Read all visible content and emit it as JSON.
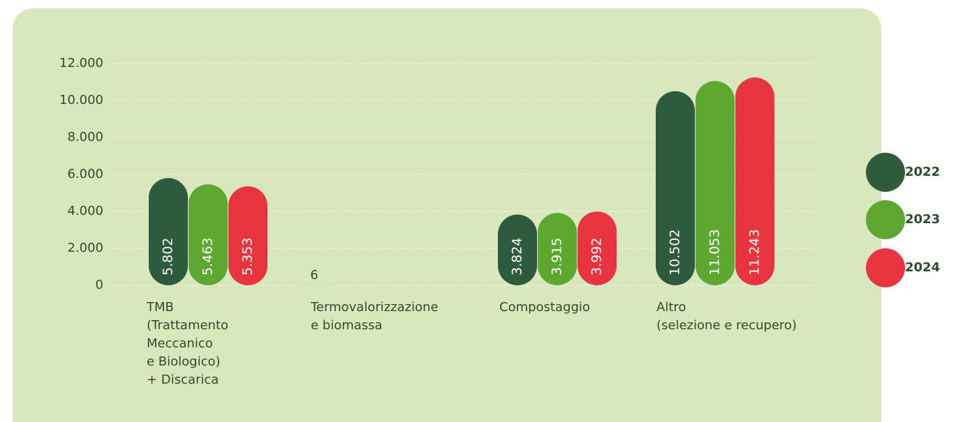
{
  "chart_data": {
    "type": "bar",
    "categories": [
      "TMB\n(Trattamento\nMeccanico\ne Biologico)\n+ Discarica",
      "Termovalorizzazione\ne biomassa",
      "Compostaggio",
      "Altro\n(selezione e recupero)"
    ],
    "series": [
      {
        "name": "2022",
        "color": "#2e5a3e",
        "values": [
          5802,
          6,
          3824,
          10502
        ],
        "value_labels": [
          "5.802",
          null,
          "3.824",
          "10.502"
        ]
      },
      {
        "name": "2023",
        "color": "#5ea832",
        "values": [
          5463,
          null,
          3915,
          11053
        ],
        "value_labels": [
          "5.463",
          null,
          "3.915",
          "11.053"
        ]
      },
      {
        "name": "2024",
        "color": "#e8343f",
        "values": [
          5353,
          null,
          3992,
          11243
        ],
        "value_labels": [
          "5.353",
          null,
          "3.992",
          "11.243"
        ]
      }
    ],
    "ylim": [
      0,
      12000
    ],
    "yticks": [
      0,
      {
        "value": 2000,
        "label": "2.000"
      },
      {
        "value": 4000,
        "label": "4.000"
      },
      {
        "value": 6000,
        "label": "6.000"
      },
      {
        "value": 8000,
        "label": "8.000"
      },
      {
        "value": 10000,
        "label": "10.000"
      },
      {
        "value": 12000,
        "label": "12.000"
      }
    ],
    "grid": true,
    "legend": "right"
  }
}
